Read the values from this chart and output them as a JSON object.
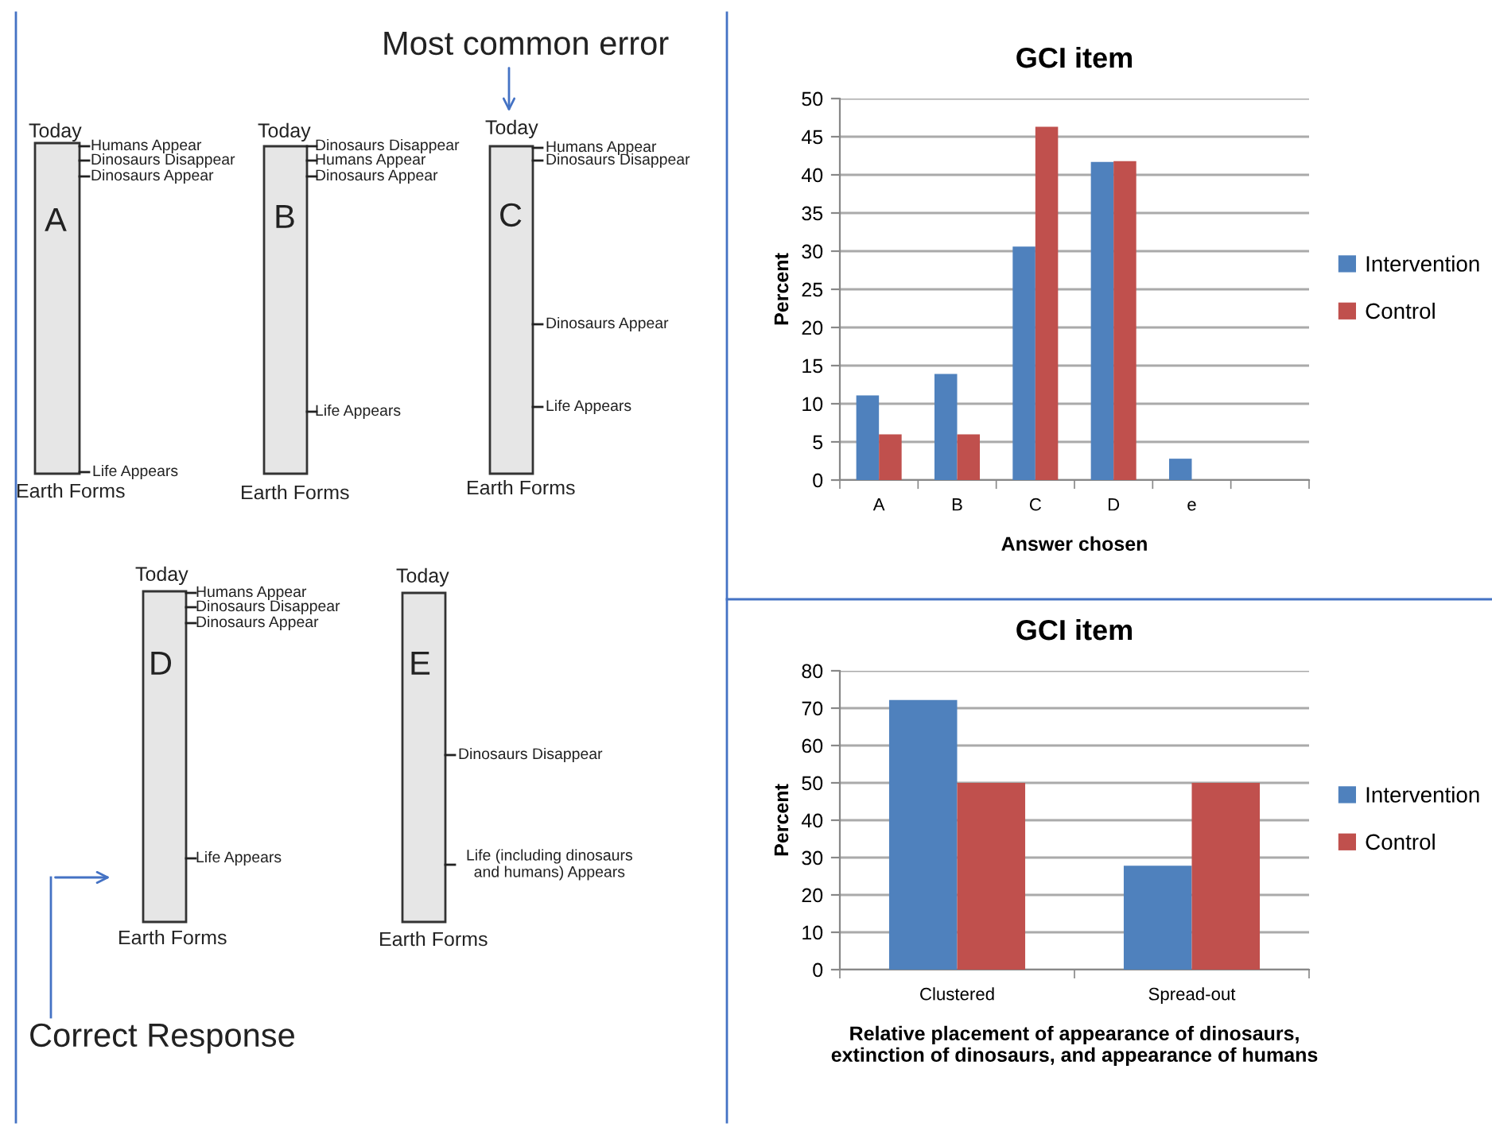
{
  "chart_data": [
    {
      "type": "other",
      "annotations": [
        "Today",
        "A",
        "Humans Appear",
        "Dinosaurs Disappear",
        "Dinosaurs Appear",
        "Life Appears",
        "Earth Forms",
        "Today",
        "B",
        "Dinosaurs Disappear",
        "Humans Appear",
        "Dinosaurs Appear",
        "Life Appears",
        "Earth Forms",
        "Most common error",
        "Today",
        "C",
        "Humans Appear",
        "Dinosaurs Disappear",
        "Dinosaurs Appear",
        "Life Appears",
        "Earth Forms",
        "Today",
        "D",
        "Humans Appear",
        "Dinosaurs Disappear",
        "Dinosaurs Appear",
        "Life Appears",
        "Earth Forms",
        "Correct Response",
        "Today",
        "E",
        "Dinosaurs Disappear",
        "Life (including dinosaurs\nand humans) Appears",
        "Earth Forms"
      ]
    },
    {
      "type": "bar",
      "title": "GCI item",
      "xlabel": "Answer chosen",
      "ylabel": "Percent",
      "categories": [
        "A",
        "B",
        "C",
        "D",
        "e",
        null
      ],
      "series": [
        {
          "name": "Intervention",
          "color": "#4f81bd",
          "values": [
            11.1,
            13.9,
            30.6,
            41.7,
            2.8,
            null
          ]
        },
        {
          "name": "Control",
          "color": "#c0504d",
          "values": [
            6,
            6,
            46.3,
            41.8,
            null,
            null
          ]
        }
      ],
      "ylim": [
        0,
        50
      ],
      "yticks": [
        0,
        5,
        10,
        15,
        20,
        25,
        30,
        35,
        40,
        45,
        50
      ],
      "grid": "y",
      "legend": "right"
    },
    {
      "type": "bar",
      "title": "GCI item",
      "xlabel": "Relative placement of appearance of dinosaurs,\nextinction of dinosaurs, and appearance of humans",
      "ylabel": "Percent",
      "categories": [
        "Clustered",
        "Spread-out"
      ],
      "series": [
        {
          "name": "Intervention",
          "color": "#4f81bd",
          "values": [
            72.2,
            27.8
          ]
        },
        {
          "name": "Control",
          "color": "#c0504d",
          "values": [
            50,
            50
          ]
        }
      ],
      "ylim": [
        0,
        80
      ],
      "yticks": [
        0,
        10,
        20,
        30,
        40,
        50,
        60,
        70,
        80
      ],
      "grid": "y",
      "legend": "right"
    }
  ]
}
